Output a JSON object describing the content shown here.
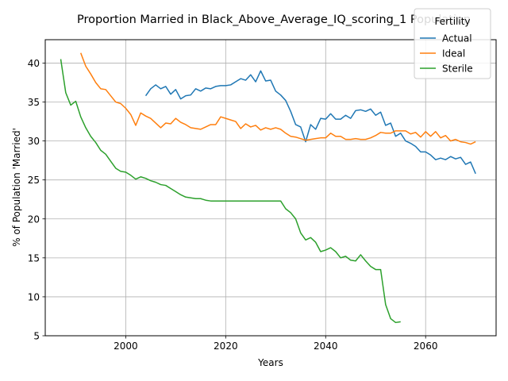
{
  "chart_data": {
    "type": "line",
    "title": "Proportion Married in Black_Above_Average_IQ_scoring_1 Population",
    "xlabel": "Years",
    "ylabel": "% of Population 'Married'",
    "xlim": [
      1983.9,
      2074.1
    ],
    "ylim": [
      5.0,
      43.0
    ],
    "xticks": [
      2000,
      2020,
      2040,
      2060
    ],
    "yticks": [
      5,
      10,
      15,
      20,
      25,
      30,
      35,
      40
    ],
    "grid": true,
    "legend": {
      "title": "Fertility",
      "position": "top-right"
    },
    "series": [
      {
        "name": "Actual",
        "color": "#1f77b4",
        "x": [
          2004,
          2005,
          2006,
          2007,
          2008,
          2009,
          2010,
          2011,
          2012,
          2013,
          2014,
          2015,
          2016,
          2017,
          2018,
          2019,
          2020,
          2021,
          2022,
          2023,
          2024,
          2025,
          2026,
          2027,
          2028,
          2029,
          2030,
          2031,
          2032,
          2033,
          2034,
          2035,
          2036,
          2037,
          2038,
          2039,
          2040,
          2041,
          2042,
          2043,
          2044,
          2045,
          2046,
          2047,
          2048,
          2049,
          2050,
          2051,
          2052,
          2053,
          2054,
          2055,
          2056,
          2057,
          2058,
          2059,
          2060,
          2061,
          2062,
          2063,
          2064,
          2065,
          2066,
          2067,
          2068,
          2069,
          2070
        ],
        "y": [
          35.8,
          36.7,
          37.2,
          36.7,
          37.0,
          36.0,
          36.6,
          35.4,
          35.8,
          35.9,
          36.7,
          36.4,
          36.8,
          36.7,
          37.0,
          37.1,
          37.1,
          37.2,
          37.6,
          38.0,
          37.8,
          38.5,
          37.6,
          39.0,
          37.7,
          37.8,
          36.4,
          35.9,
          35.2,
          33.8,
          32.1,
          31.8,
          29.9,
          32.1,
          31.5,
          32.9,
          32.8,
          33.5,
          32.8,
          32.8,
          33.3,
          32.9,
          33.9,
          34.0,
          33.8,
          34.1,
          33.3,
          33.7,
          32.0,
          32.3,
          30.6,
          31.0,
          30.0,
          29.7,
          29.3,
          28.6,
          28.6,
          28.2,
          27.6,
          27.8,
          27.6,
          28.0,
          27.7,
          27.9,
          27.0,
          27.3,
          25.8
        ]
      },
      {
        "name": "Ideal",
        "color": "#ff7f0e",
        "x": [
          1991,
          1992,
          1993,
          1994,
          1995,
          1996,
          1997,
          1998,
          1999,
          2000,
          2001,
          2002,
          2003,
          2004,
          2005,
          2006,
          2007,
          2008,
          2009,
          2010,
          2011,
          2012,
          2013,
          2014,
          2015,
          2016,
          2017,
          2018,
          2019,
          2020,
          2021,
          2022,
          2023,
          2024,
          2025,
          2026,
          2027,
          2028,
          2029,
          2030,
          2031,
          2032,
          2033,
          2034,
          2035,
          2036,
          2037,
          2038,
          2039,
          2040,
          2041,
          2042,
          2043,
          2044,
          2045,
          2046,
          2047,
          2048,
          2049,
          2050,
          2051,
          2052,
          2053,
          2054,
          2055,
          2056,
          2057,
          2058,
          2059,
          2060,
          2061,
          2062,
          2063,
          2064,
          2065,
          2066,
          2067,
          2068,
          2069,
          2070
        ],
        "y": [
          41.3,
          39.6,
          38.6,
          37.5,
          36.7,
          36.6,
          35.8,
          35.0,
          34.8,
          34.2,
          33.4,
          32.0,
          33.6,
          33.2,
          32.9,
          32.3,
          31.7,
          32.3,
          32.2,
          32.9,
          32.4,
          32.1,
          31.7,
          31.6,
          31.5,
          31.8,
          32.1,
          32.1,
          33.1,
          32.9,
          32.7,
          32.5,
          31.6,
          32.2,
          31.8,
          32.0,
          31.4,
          31.7,
          31.5,
          31.7,
          31.5,
          31.0,
          30.6,
          30.5,
          30.3,
          30.1,
          30.2,
          30.3,
          30.4,
          30.4,
          31.0,
          30.6,
          30.6,
          30.2,
          30.2,
          30.3,
          30.2,
          30.2,
          30.4,
          30.7,
          31.1,
          31.0,
          31.0,
          31.3,
          31.3,
          31.3,
          30.9,
          31.1,
          30.5,
          31.2,
          30.6,
          31.2,
          30.4,
          30.7,
          30.0,
          30.2,
          29.9,
          29.8,
          29.6,
          29.9
        ]
      },
      {
        "name": "Sterile",
        "color": "#2ca02c",
        "x": [
          1987,
          1988,
          1989,
          1990,
          1991,
          1992,
          1993,
          1994,
          1995,
          1996,
          1997,
          1998,
          1999,
          2000,
          2001,
          2002,
          2003,
          2004,
          2005,
          2006,
          2007,
          2008,
          2009,
          2010,
          2011,
          2012,
          2013,
          2014,
          2015,
          2016,
          2017,
          2018,
          2019,
          2020,
          2021,
          2022,
          2023,
          2024,
          2025,
          2026,
          2027,
          2028,
          2029,
          2030,
          2031,
          2032,
          2033,
          2034,
          2035,
          2036,
          2037,
          2038,
          2039,
          2040,
          2041,
          2042,
          2043,
          2044,
          2045,
          2046,
          2047,
          2048,
          2049,
          2050,
          2051,
          2052,
          2053,
          2054,
          2055
        ],
        "y": [
          40.5,
          36.2,
          34.6,
          35.1,
          33.1,
          31.7,
          30.6,
          29.8,
          28.8,
          28.3,
          27.4,
          26.5,
          26.1,
          26.0,
          25.6,
          25.1,
          25.4,
          25.2,
          24.9,
          24.7,
          24.4,
          24.3,
          23.9,
          23.5,
          23.1,
          22.8,
          22.7,
          22.6,
          22.6,
          22.4,
          22.3,
          22.3,
          22.3,
          22.3,
          22.3,
          22.3,
          22.3,
          22.3,
          22.3,
          22.3,
          22.3,
          22.3,
          22.3,
          22.3,
          22.3,
          21.3,
          20.8,
          20.0,
          18.2,
          17.3,
          17.6,
          17.0,
          15.8,
          16.0,
          16.3,
          15.8,
          15.0,
          15.2,
          14.7,
          14.6,
          15.4,
          14.6,
          13.9,
          13.5,
          13.5,
          9.0,
          7.2,
          6.7,
          6.8
        ]
      }
    ]
  }
}
